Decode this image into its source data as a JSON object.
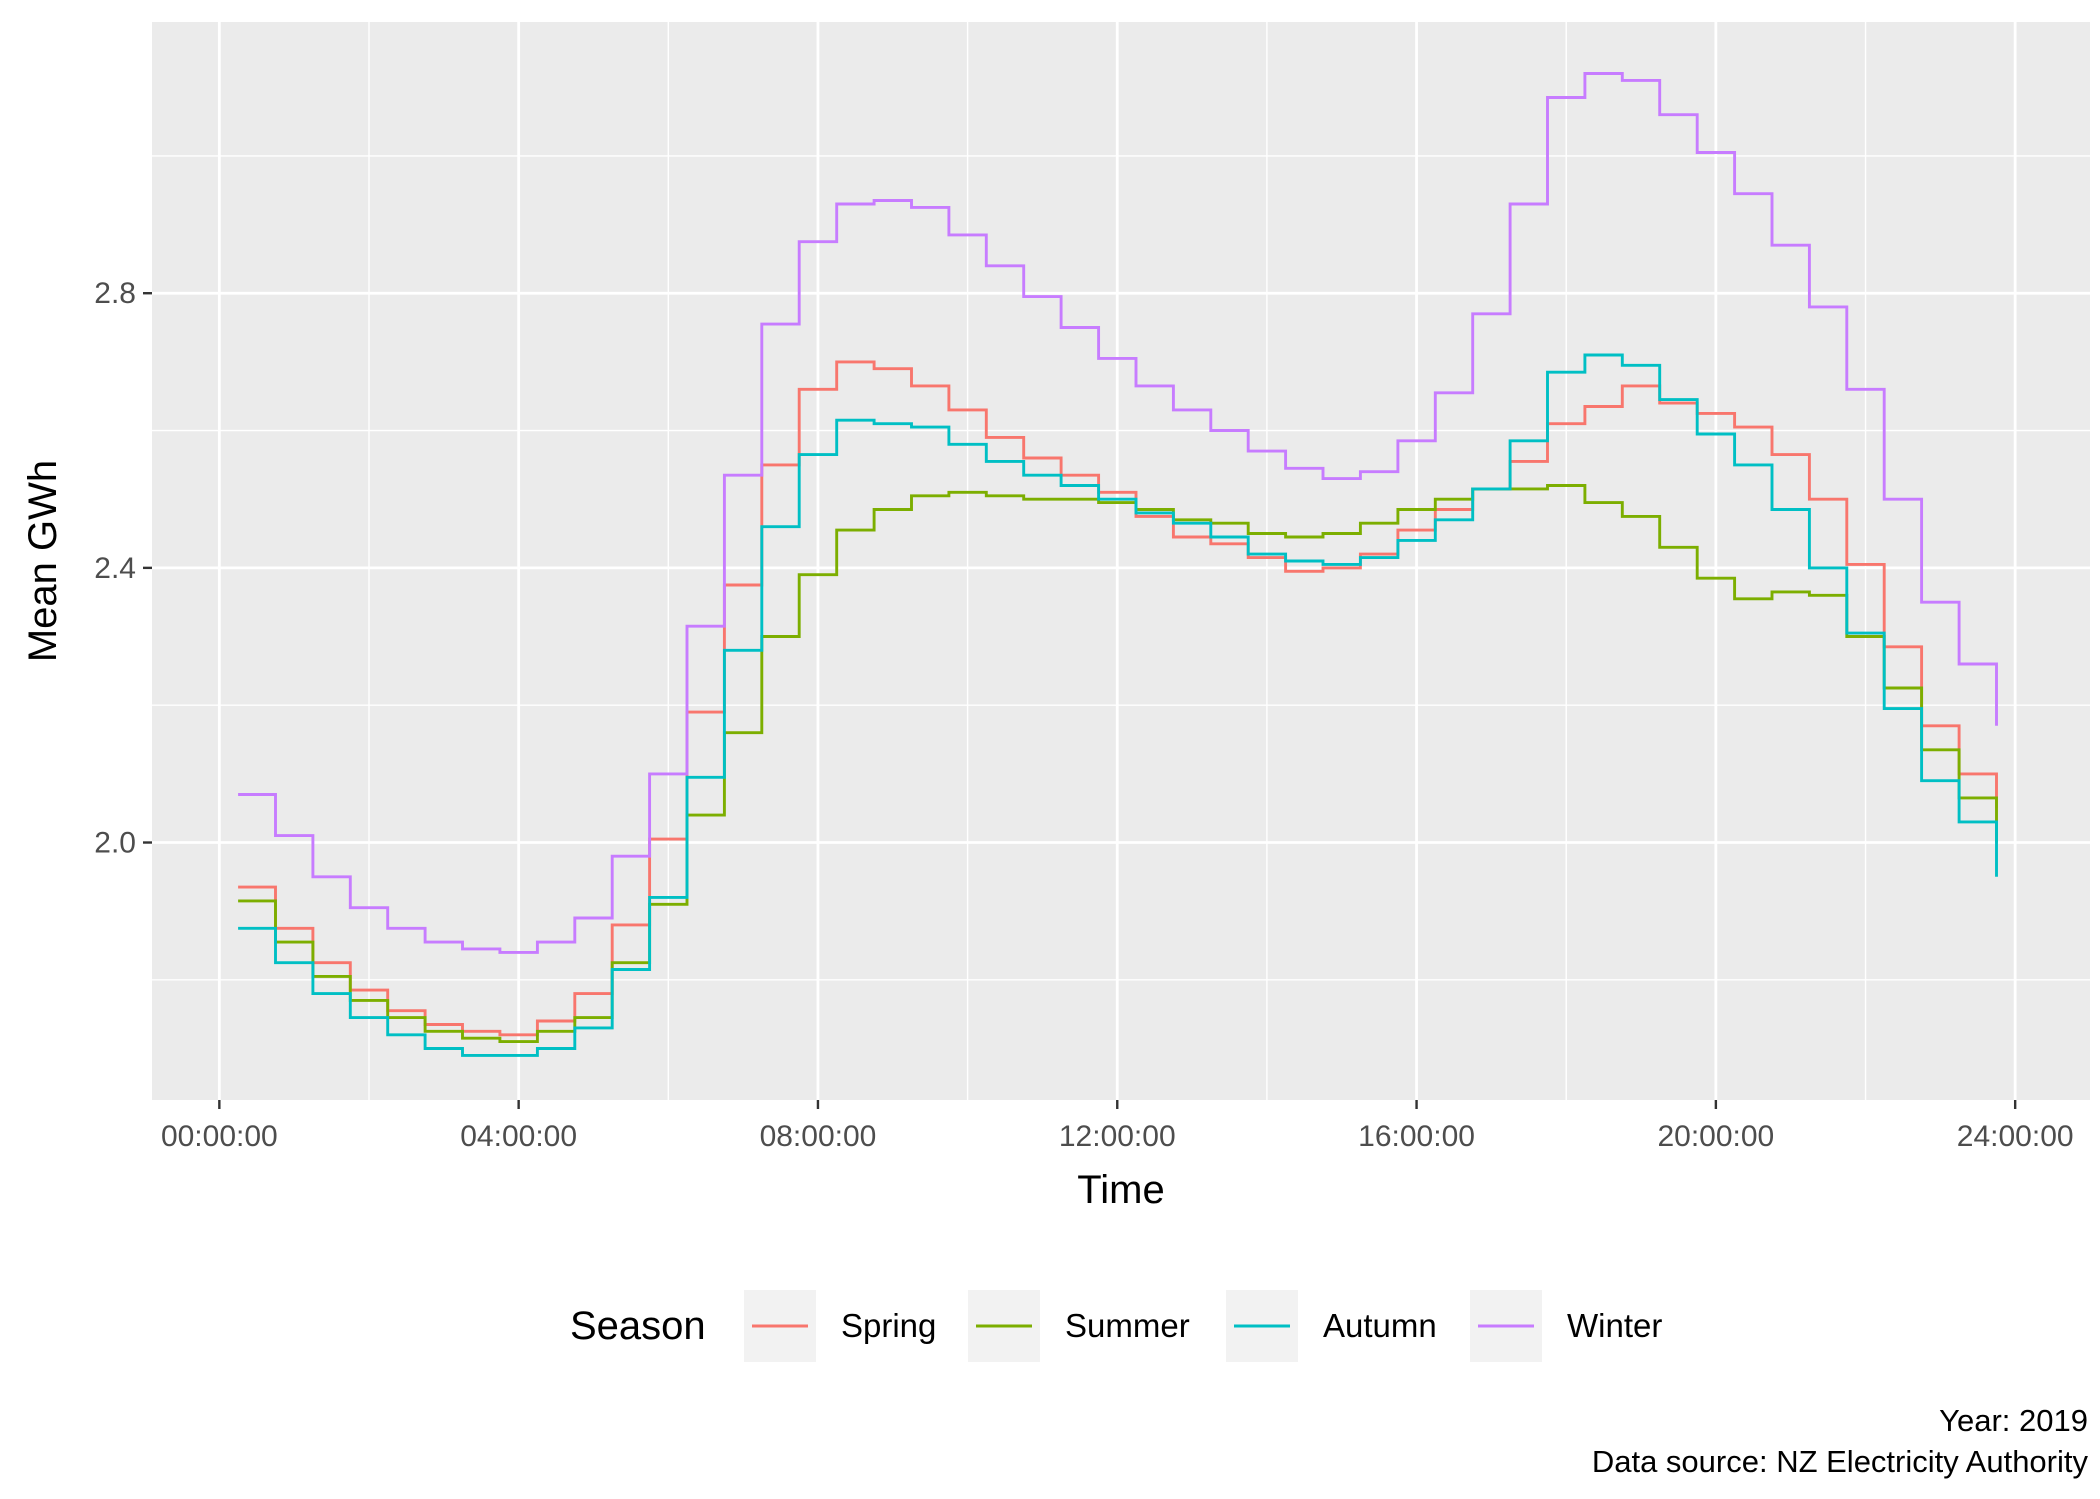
{
  "chart_data": {
    "type": "line",
    "step": true,
    "title": "",
    "xlabel": "Time",
    "ylabel": "Mean GWh",
    "x_tick_labels": [
      "00:00:00",
      "04:00:00",
      "08:00:00",
      "12:00:00",
      "16:00:00",
      "20:00:00",
      "24:00:00"
    ],
    "y_tick_labels": [
      "2.0",
      "2.4",
      "2.8"
    ],
    "xlim_hours": [
      -0.9,
      25.0
    ],
    "ylim": [
      1.625,
      3.195
    ],
    "grid": true,
    "legend": {
      "title": "Season",
      "position": "bottom"
    },
    "caption": [
      "Year: 2019",
      "Data source: NZ Electricity Authority"
    ],
    "x_hours": [
      0.25,
      0.75,
      1.25,
      1.75,
      2.25,
      2.75,
      3.25,
      3.75,
      4.25,
      4.75,
      5.25,
      5.75,
      6.25,
      6.75,
      7.25,
      7.75,
      8.25,
      8.75,
      9.25,
      9.75,
      10.25,
      10.75,
      11.25,
      11.75,
      12.25,
      12.75,
      13.25,
      13.75,
      14.25,
      14.75,
      15.25,
      15.75,
      16.25,
      16.75,
      17.25,
      17.75,
      18.25,
      18.75,
      19.25,
      19.75,
      20.25,
      20.75,
      21.25,
      21.75,
      22.25,
      22.75,
      23.25,
      23.75
    ],
    "series": [
      {
        "name": "Spring",
        "color": "#F8766D",
        "values": [
          1.935,
          1.875,
          1.825,
          1.785,
          1.755,
          1.735,
          1.725,
          1.72,
          1.74,
          1.78,
          1.88,
          2.005,
          2.19,
          2.375,
          2.55,
          2.66,
          2.7,
          2.69,
          2.665,
          2.63,
          2.59,
          2.56,
          2.535,
          2.51,
          2.475,
          2.445,
          2.435,
          2.415,
          2.395,
          2.4,
          2.42,
          2.455,
          2.485,
          2.515,
          2.555,
          2.61,
          2.635,
          2.665,
          2.64,
          2.625,
          2.605,
          2.565,
          2.5,
          2.405,
          2.285,
          2.17,
          2.1,
          2.05
        ]
      },
      {
        "name": "Summer",
        "color": "#7CAE00",
        "values": [
          1.915,
          1.855,
          1.805,
          1.77,
          1.745,
          1.725,
          1.715,
          1.71,
          1.725,
          1.745,
          1.825,
          1.91,
          2.04,
          2.16,
          2.3,
          2.39,
          2.455,
          2.485,
          2.505,
          2.51,
          2.505,
          2.5,
          2.5,
          2.495,
          2.485,
          2.47,
          2.465,
          2.45,
          2.445,
          2.45,
          2.465,
          2.485,
          2.5,
          2.515,
          2.515,
          2.52,
          2.495,
          2.475,
          2.43,
          2.385,
          2.355,
          2.365,
          2.36,
          2.3,
          2.225,
          2.135,
          2.065,
          2.0
        ]
      },
      {
        "name": "Autumn",
        "color": "#00BFC4",
        "values": [
          1.875,
          1.825,
          1.78,
          1.745,
          1.72,
          1.7,
          1.69,
          1.69,
          1.7,
          1.73,
          1.815,
          1.92,
          2.095,
          2.28,
          2.46,
          2.565,
          2.615,
          2.61,
          2.605,
          2.58,
          2.555,
          2.535,
          2.52,
          2.5,
          2.48,
          2.465,
          2.445,
          2.42,
          2.41,
          2.405,
          2.415,
          2.44,
          2.47,
          2.515,
          2.585,
          2.685,
          2.71,
          2.695,
          2.645,
          2.595,
          2.55,
          2.485,
          2.4,
          2.305,
          2.195,
          2.09,
          2.03,
          1.95
        ]
      },
      {
        "name": "Winter",
        "color": "#C77CFF",
        "values": [
          2.07,
          2.01,
          1.95,
          1.905,
          1.875,
          1.855,
          1.845,
          1.84,
          1.855,
          1.89,
          1.98,
          2.1,
          2.315,
          2.535,
          2.755,
          2.875,
          2.93,
          2.935,
          2.925,
          2.885,
          2.84,
          2.795,
          2.75,
          2.705,
          2.665,
          2.63,
          2.6,
          2.57,
          2.545,
          2.53,
          2.54,
          2.585,
          2.655,
          2.77,
          2.93,
          3.085,
          3.12,
          3.11,
          3.06,
          3.005,
          2.945,
          2.87,
          2.78,
          2.66,
          2.5,
          2.35,
          2.26,
          2.17
        ]
      }
    ]
  }
}
